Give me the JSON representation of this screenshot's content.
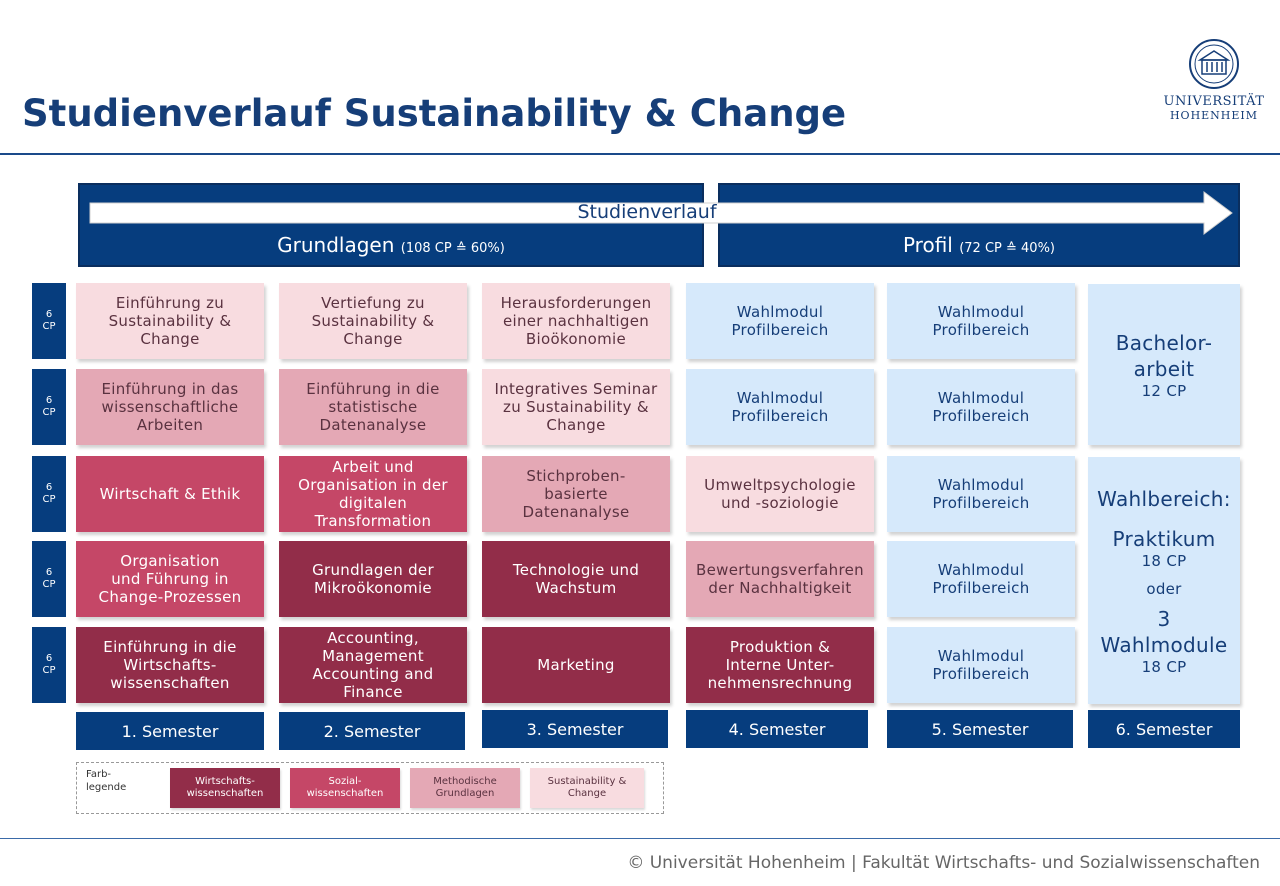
{
  "title": "Studienverlauf Sustainability & Change",
  "logo": {
    "line1": "UNIVERSITÄT",
    "line2": "HOHENHEIM"
  },
  "header": {
    "arrow_label": "Studienverlauf",
    "grundlagen": {
      "name": "Grundlagen",
      "detail": "(108 CP ≙ 60%)"
    },
    "profil": {
      "name": "Profil",
      "detail": "(72 CP ≙ 40%)"
    }
  },
  "cp_label": {
    "value": "6",
    "unit": "CP"
  },
  "colors": {
    "wirtschaftswissenschaften": "#922d49",
    "sozialwissenschaften": "#c54767",
    "methodische_grundlagen": "#e4a8b5",
    "sustainability_change": "#f8dce0",
    "profilbereich": "#d6e9fb",
    "navy": "#063d7e"
  },
  "semesters": [
    "1. Semester",
    "2. Semester",
    "3. Semester",
    "4. Semester",
    "5. Semester",
    "6. Semester"
  ],
  "modules": [
    [
      "Einführung zu\nSustainability &\nChange",
      "Einführung in das\nwissenschaftliche\nArbeiten",
      "Wirtschaft & Ethik",
      "Organisation\nund Führung in\nChange-Prozessen",
      "Einführung in die\nWirtschafts-\nwissenschaften"
    ],
    [
      "Vertiefung zu\nSustainability &\nChange",
      "Einführung in die\nstatistische\nDatenanalyse",
      "Arbeit und\nOrganisation in der\ndigitalen\nTransformation",
      "Grundlagen der\nMikroökonomie",
      "Accounting,\nManagement\nAccounting and\nFinance"
    ],
    [
      "Herausforderungen\neiner nachhaltigen\nBioökonomie",
      "Integratives Seminar\nzu Sustainability &\nChange",
      "Stichproben-\nbasierte\nDatenanalyse",
      "Technologie und\nWachstum",
      "Marketing"
    ],
    [
      "Wahlmodul\nProfilbereich",
      "Wahlmodul\nProfilbereich",
      "Umweltpsychologie\nund -soziologie",
      "Bewertungsverfahren\nder Nachhaltigkeit",
      "Produktion &\nInterne Unter-\nnehmensrechnung"
    ],
    [
      "Wahlmodul\nProfilbereich",
      "Wahlmodul\nProfilbereich",
      "Wahlmodul\nProfilbereich",
      "Wahlmodul\nProfilbereich",
      "Wahlmodul\nProfilbereich"
    ]
  ],
  "semester6": {
    "thesis": {
      "name": "Bachelor-\narbeit",
      "cp": "12 CP"
    },
    "wahl": {
      "heading": "Wahlbereich:",
      "option1": "Praktikum",
      "cp1": "18 CP",
      "or": "oder",
      "option2": "3\nWahlmodule",
      "cp2": "18 CP"
    }
  },
  "legend": {
    "label": "Farb-\nlegende",
    "items": [
      "Wirtschafts-\nwissenschaften",
      "Sozial-\nwissenschaften",
      "Methodische\nGrundlagen",
      "Sustainability &\nChange"
    ]
  },
  "footer": "© Universität Hohenheim | Fakultät Wirtschafts- und Sozialwissenschaften"
}
